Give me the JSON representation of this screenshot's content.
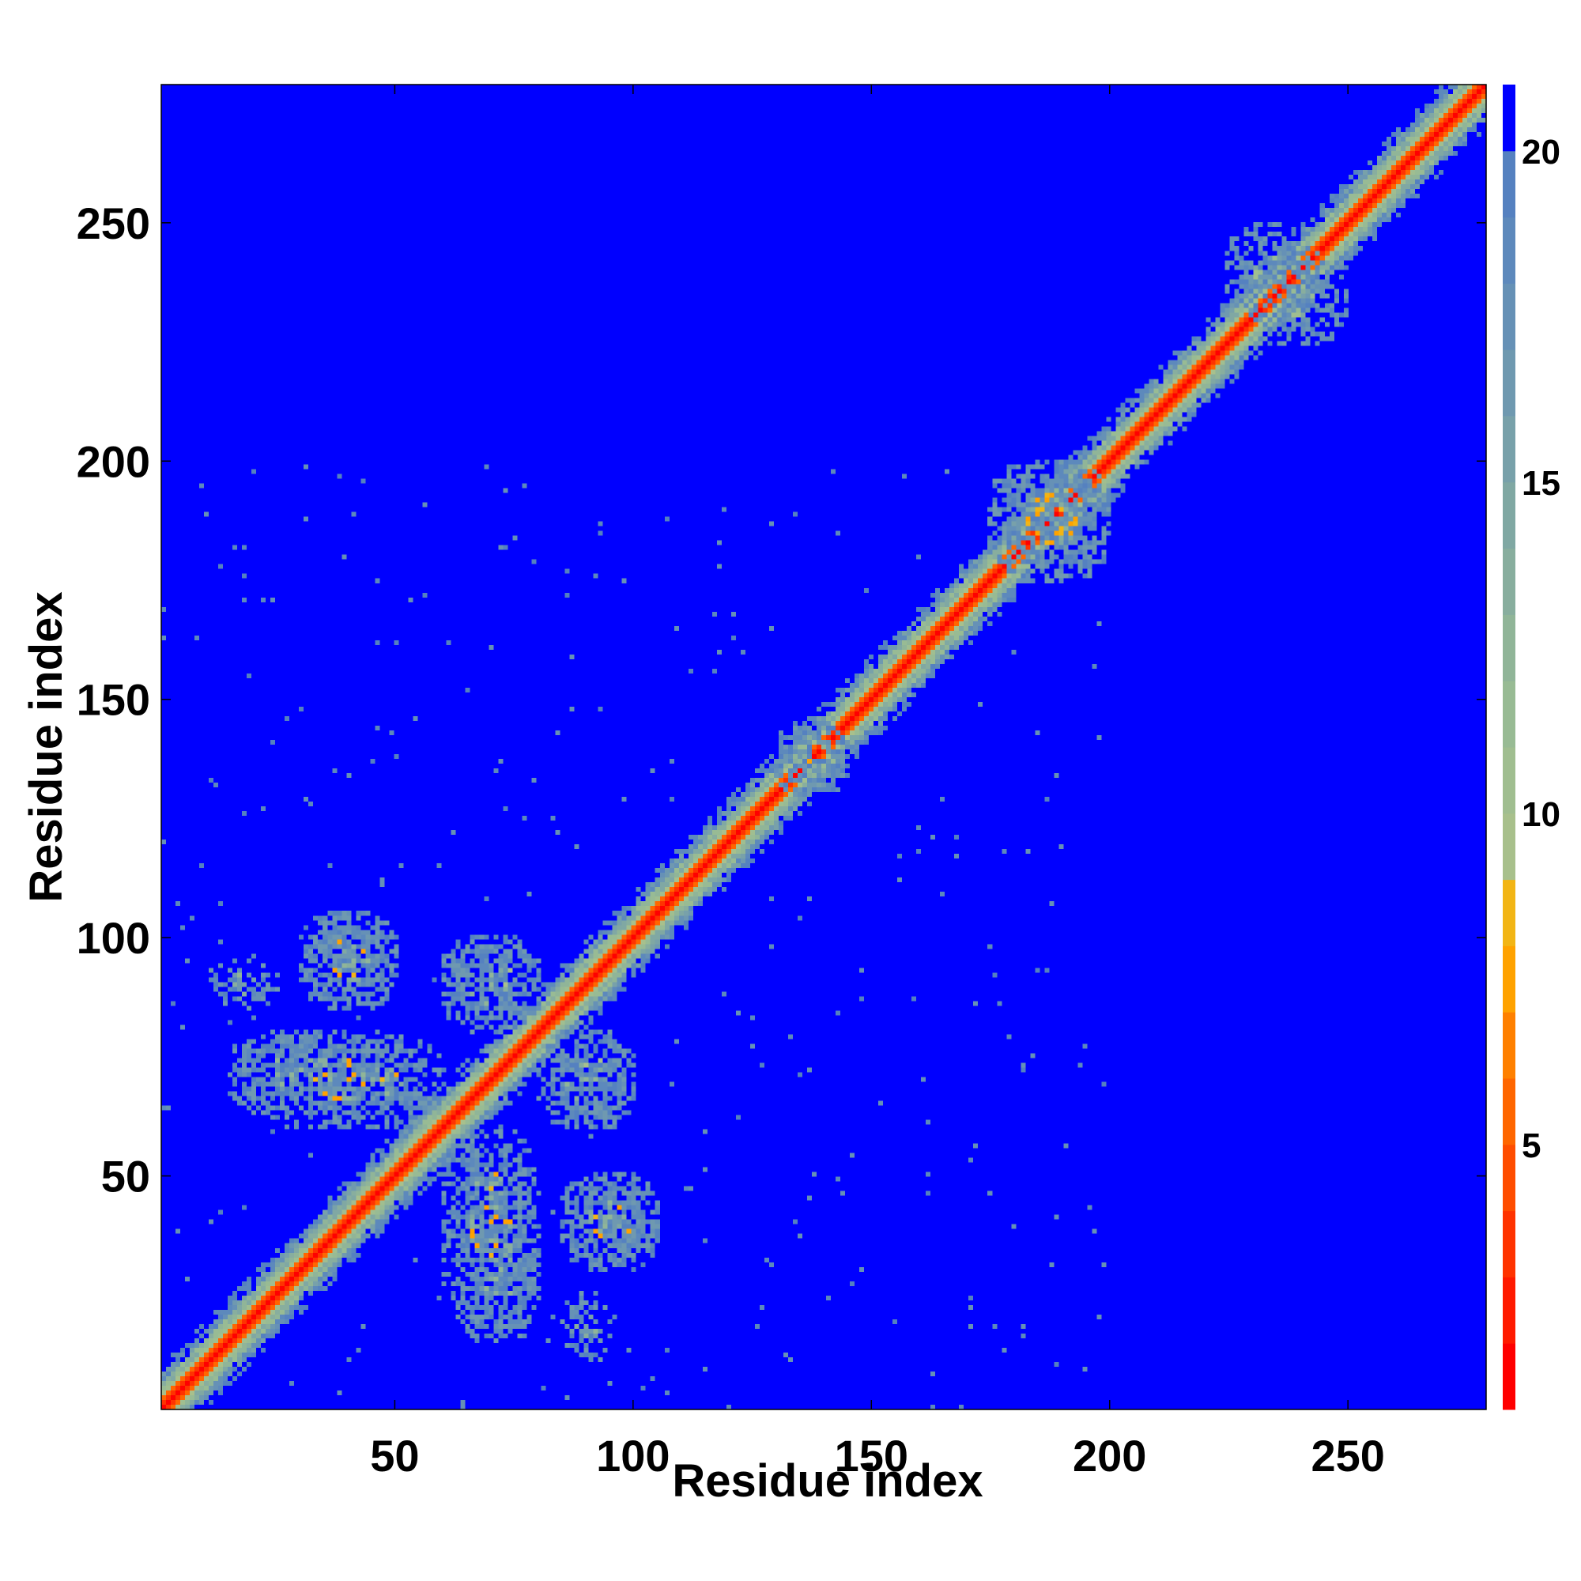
{
  "chart_data": {
    "type": "heatmap",
    "title": "",
    "xlabel": "Residue index",
    "ylabel": "Residue index",
    "xlim": [
      1,
      279
    ],
    "ylim": [
      1,
      279
    ],
    "x_ticks": [
      50,
      100,
      150,
      200,
      250
    ],
    "y_ticks": [
      50,
      100,
      150,
      200,
      250
    ],
    "colorbar": {
      "ticks": [
        5,
        10,
        15,
        20
      ],
      "range": [
        1,
        21
      ],
      "levels": [
        {
          "upto": 2,
          "color": "#ff0000"
        },
        {
          "upto": 3,
          "color": "#ff1a00"
        },
        {
          "upto": 4,
          "color": "#ff3300"
        },
        {
          "upto": 5,
          "color": "#ff4d00"
        },
        {
          "upto": 6,
          "color": "#ff6600"
        },
        {
          "upto": 7,
          "color": "#ff8000"
        },
        {
          "upto": 8,
          "color": "#ffa200"
        },
        {
          "upto": 9,
          "color": "#f2b515"
        },
        {
          "upto": 10,
          "color": "#a8c08c"
        },
        {
          "upto": 11,
          "color": "#a0be90"
        },
        {
          "upto": 12,
          "color": "#98bb94"
        },
        {
          "upto": 13,
          "color": "#90b598"
        },
        {
          "upto": 14,
          "color": "#88ae9e"
        },
        {
          "upto": 15,
          "color": "#80a8a3"
        },
        {
          "upto": 16,
          "color": "#78a1aa"
        },
        {
          "upto": 17,
          "color": "#6f99b0"
        },
        {
          "upto": 18,
          "color": "#6691b6"
        },
        {
          "upto": 19,
          "color": "#5d89bc"
        },
        {
          "upto": 20,
          "color": "#5581c0"
        },
        {
          "upto": 21,
          "color": "#0000ff"
        }
      ]
    },
    "background_value": 21,
    "description_of_values": "pairwise residue distance; diagonal band (|i-j| small) low values, off-diagonal contact clusters",
    "contact_clusters": [
      {
        "x": [
          30,
          50
        ],
        "y": [
          85,
          105
        ],
        "min_value": 7
      },
      {
        "x": [
          15,
          60
        ],
        "y": [
          60,
          80
        ],
        "min_value": 7
      },
      {
        "x": [
          60,
          80
        ],
        "y": [
          40,
          55
        ],
        "min_value": 7
      },
      {
        "x": [
          85,
          105
        ],
        "y": [
          30,
          50
        ],
        "min_value": 7
      },
      {
        "x": [
          60,
          80
        ],
        "y": [
          85,
          100
        ],
        "min_value": 8
      },
      {
        "x": [
          80,
          100
        ],
        "y": [
          60,
          80
        ],
        "min_value": 8
      },
      {
        "x": [
          65,
          80
        ],
        "y": [
          15,
          40
        ],
        "min_value": 15
      },
      {
        "x": [
          85,
          95
        ],
        "y": [
          10,
          25
        ],
        "min_value": 15
      },
      {
        "x": [
          175,
          200
        ],
        "y": [
          175,
          200
        ],
        "min_value": 7
      },
      {
        "x": [
          225,
          245
        ],
        "y": [
          230,
          250
        ],
        "min_value": 10
      },
      {
        "x": [
          130,
          145
        ],
        "y": [
          130,
          145
        ],
        "min_value": 7
      }
    ]
  }
}
